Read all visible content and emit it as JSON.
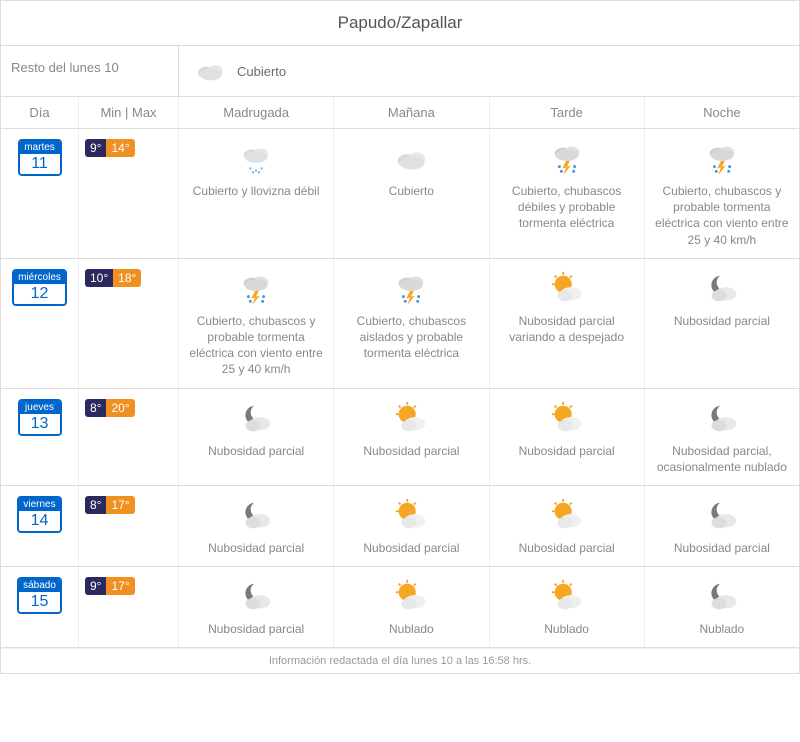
{
  "title": "Papudo/Zapallar",
  "current": {
    "label": "Resto del lunes 10",
    "condition": "Cubierto",
    "icon": "cloud"
  },
  "headers": {
    "dia": "Día",
    "minmax": "Min | Max",
    "p0": "Madrugada",
    "p1": "Mañana",
    "p2": "Tarde",
    "p3": "Noche"
  },
  "days": [
    {
      "dow": "martes",
      "num": "11",
      "min": "9°",
      "max": "14°",
      "periods": [
        {
          "icon": "drizzle",
          "desc": "Cubierto y llovizna débil"
        },
        {
          "icon": "cloud",
          "desc": "Cubierto"
        },
        {
          "icon": "storm",
          "desc": "Cubierto, chubascos débiles y probable tormenta eléctrica"
        },
        {
          "icon": "storm",
          "desc": "Cubierto, chubascos y probable tormenta eléctrica con viento entre 25 y 40 km/h"
        }
      ]
    },
    {
      "dow": "miércoles",
      "num": "12",
      "min": "10°",
      "max": "18°",
      "periods": [
        {
          "icon": "storm",
          "desc": "Cubierto, chubascos y probable tormenta eléctrica con viento entre 25 y 40 km/h"
        },
        {
          "icon": "storm",
          "desc": "Cubierto, chubascos aislados y probable tormenta eléctrica"
        },
        {
          "icon": "sun-cloud",
          "desc": "Nubosidad parcial variando a despejado"
        },
        {
          "icon": "moon-cloud",
          "desc": "Nubosidad parcial"
        }
      ]
    },
    {
      "dow": "jueves",
      "num": "13",
      "min": "8°",
      "max": "20°",
      "periods": [
        {
          "icon": "moon-cloud",
          "desc": "Nubosidad parcial"
        },
        {
          "icon": "sun-cloud",
          "desc": "Nubosidad parcial"
        },
        {
          "icon": "sun-cloud",
          "desc": "Nubosidad parcial"
        },
        {
          "icon": "moon-cloud",
          "desc": "Nubosidad parcial, ocasionalmente nublado"
        }
      ]
    },
    {
      "dow": "viernes",
      "num": "14",
      "min": "8°",
      "max": "17°",
      "periods": [
        {
          "icon": "moon-cloud",
          "desc": "Nubosidad parcial"
        },
        {
          "icon": "sun-cloud",
          "desc": "Nubosidad parcial"
        },
        {
          "icon": "sun-cloud",
          "desc": "Nubosidad parcial"
        },
        {
          "icon": "moon-cloud",
          "desc": "Nubosidad parcial"
        }
      ]
    },
    {
      "dow": "sábado",
      "num": "15",
      "min": "9°",
      "max": "17°",
      "periods": [
        {
          "icon": "moon-cloud",
          "desc": "Nubosidad parcial"
        },
        {
          "icon": "sun-cloud",
          "desc": "Nublado"
        },
        {
          "icon": "sun-cloud",
          "desc": "Nublado"
        },
        {
          "icon": "moon-cloud",
          "desc": "Nublado"
        }
      ]
    }
  ],
  "footer": "Información redactada el día lunes 10 a las 16:58 hrs.",
  "colors": {
    "accent_blue": "#0066cc",
    "min_bg": "#2a2a5e",
    "max_bg": "#f09020",
    "border": "#ddd",
    "text_muted": "#888"
  }
}
